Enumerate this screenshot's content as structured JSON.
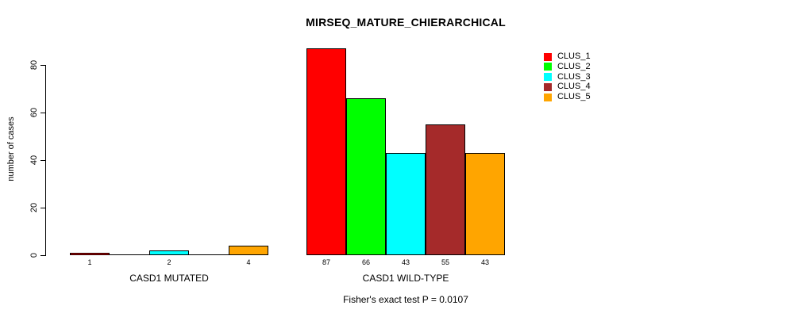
{
  "title": "MIRSEQ_MATURE_CHIERARCHICAL",
  "chart_data": {
    "type": "bar",
    "title": "MIRSEQ_MATURE_CHIERARCHICAL",
    "ylabel": "number of cases",
    "xlabel": "",
    "ylim": [
      0,
      90
    ],
    "yticks": [
      0,
      20,
      40,
      60,
      80
    ],
    "grid": false,
    "legend_position": "right",
    "categories": [
      "CASD1 MUTATED",
      "CASD1 WILD-TYPE"
    ],
    "series": [
      {
        "name": "CLUS_1",
        "color": "#FF0000",
        "values": [
          1,
          87
        ]
      },
      {
        "name": "CLUS_2",
        "color": "#00FF00",
        "values": [
          0,
          66
        ]
      },
      {
        "name": "CLUS_3",
        "color": "#00FFFF",
        "values": [
          2,
          43
        ]
      },
      {
        "name": "CLUS_4",
        "color": "#A52A2A",
        "values": [
          0,
          55
        ]
      },
      {
        "name": "CLUS_5",
        "color": "#FFA500",
        "values": [
          4,
          43
        ]
      }
    ],
    "bar_value_labels_shown_only_when_nonzero": true,
    "annotation": "Fisher's exact test P = 0.0107"
  }
}
